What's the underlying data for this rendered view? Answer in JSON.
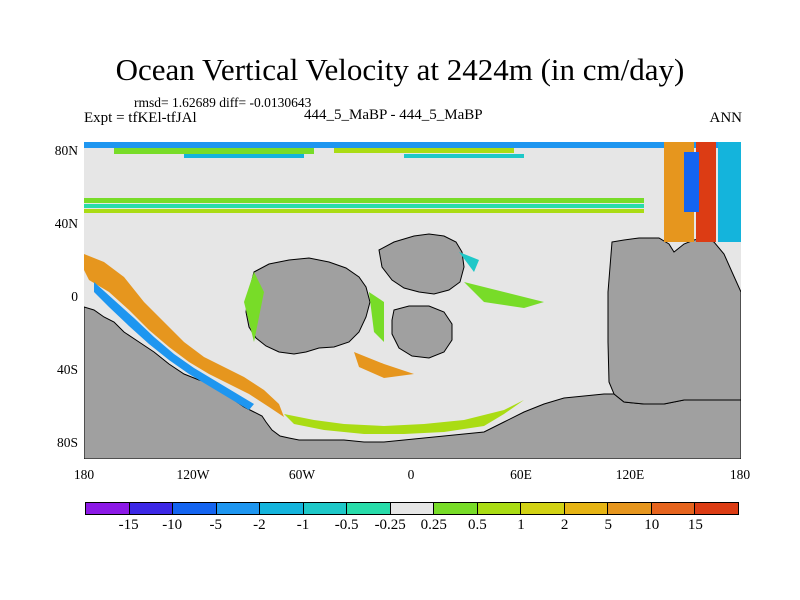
{
  "title": "Ocean Vertical Velocity at 2424m (in cm/day)",
  "stats": "rmsd= 1.62689 diff= -0.0130643",
  "expt": "Expt = tfKEl-tfJAl",
  "case_id": "444_5_MaBP - 444_5_MaBP",
  "season": "ANN",
  "y_ticks": [
    "80N",
    "40N",
    "0",
    "40S",
    "80S"
  ],
  "x_ticks": [
    "180",
    "120W",
    "60W",
    "0",
    "60E",
    "120E",
    "180"
  ],
  "colorbar": {
    "labels": [
      "-15",
      "-10",
      "-5",
      "-2",
      "-1",
      "-0.5",
      "-0.25",
      "0.25",
      "0.5",
      "1",
      "2",
      "5",
      "10",
      "15"
    ],
    "colors": [
      "#8c19e6",
      "#3c28e6",
      "#1464f0",
      "#1e96f0",
      "#14b4dc",
      "#1ec8c8",
      "#28dcaa",
      "#e6e6e6",
      "#78dc28",
      "#aadc14",
      "#d2d214",
      "#e6b414",
      "#e6961e",
      "#e6641e",
      "#dc3c14"
    ]
  },
  "land_color": "#a0a0a0",
  "ocean_color": "#e6e6e6"
}
